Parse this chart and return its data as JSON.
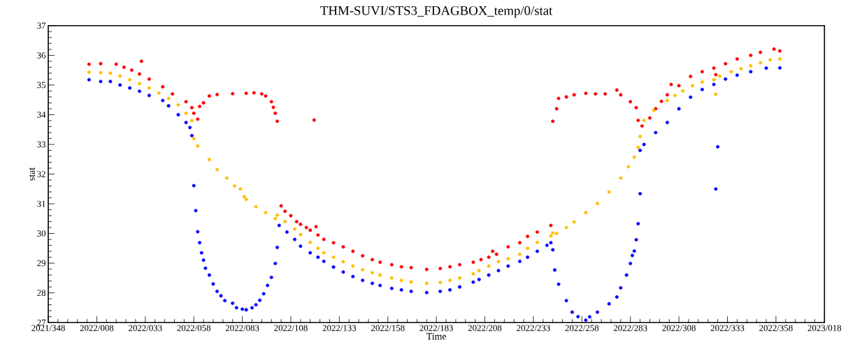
{
  "chart_data": {
    "type": "scatter",
    "title": "THM-SUVI/STS3_FDAGBOX_temp/0/stat",
    "xlabel": "Time",
    "ylabel": "stat",
    "xlim": [
      "2021-12-14",
      "2023-01-18"
    ],
    "ylim": [
      27,
      37
    ],
    "xticks": [
      {
        "value": "2021-12-14",
        "label": "2021/348"
      },
      {
        "value": "2022-01-08",
        "label": "2022/008"
      },
      {
        "value": "2022-02-02",
        "label": "2022/033"
      },
      {
        "value": "2022-02-27",
        "label": "2022/058"
      },
      {
        "value": "2022-03-24",
        "label": "2022/083"
      },
      {
        "value": "2022-04-18",
        "label": "2022/108"
      },
      {
        "value": "2022-05-13",
        "label": "2022/133"
      },
      {
        "value": "2022-06-07",
        "label": "2022/158"
      },
      {
        "value": "2022-07-02",
        "label": "2022/183"
      },
      {
        "value": "2022-07-27",
        "label": "2022/208"
      },
      {
        "value": "2022-08-21",
        "label": "2022/233"
      },
      {
        "value": "2022-09-15",
        "label": "2022/258"
      },
      {
        "value": "2022-10-10",
        "label": "2022/283"
      },
      {
        "value": "2022-11-04",
        "label": "2022/308"
      },
      {
        "value": "2022-11-29",
        "label": "2022/333"
      },
      {
        "value": "2022-12-24",
        "label": "2022/358"
      },
      {
        "value": "2023-01-18",
        "label": "2023/018"
      }
    ],
    "yticks": [
      27,
      28,
      29,
      30,
      31,
      32,
      33,
      34,
      35,
      36,
      37
    ],
    "marker": "circle",
    "series": [
      {
        "color": "#ff0000",
        "x": [
          "2022-01-04",
          "2022-01-10",
          "2022-01-18",
          "2022-01-22",
          "2022-01-26",
          "2022-01-30",
          "2022-01-31",
          "2022-02-04",
          "2022-02-11",
          "2022-02-16",
          "2022-02-23",
          "2022-02-26",
          "2022-02-27",
          "2022-03-01",
          "2022-03-02",
          "2022-03-04",
          "2022-03-07",
          "2022-03-11",
          "2022-03-19",
          "2022-03-26",
          "2022-03-30",
          "2022-04-03",
          "2022-04-05",
          "2022-04-08",
          "2022-04-09",
          "2022-04-10",
          "2022-04-11",
          "2022-04-13",
          "2022-04-15",
          "2022-04-18",
          "2022-04-21",
          "2022-04-23",
          "2022-04-26",
          "2022-04-28",
          "2022-04-30",
          "2022-05-01",
          "2022-05-02",
          "2022-05-05",
          "2022-05-10",
          "2022-05-15",
          "2022-05-20",
          "2022-05-25",
          "2022-05-30",
          "2022-06-03",
          "2022-06-09",
          "2022-06-14",
          "2022-06-19",
          "2022-06-27",
          "2022-07-04",
          "2022-07-09",
          "2022-07-14",
          "2022-07-21",
          "2022-07-25",
          "2022-07-29",
          "2022-07-31",
          "2022-08-02",
          "2022-08-08",
          "2022-08-14",
          "2022-08-18",
          "2022-08-23",
          "2022-08-30",
          "2022-08-31",
          "2022-09-02",
          "2022-09-03",
          "2022-09-07",
          "2022-09-11",
          "2022-09-17",
          "2022-09-22",
          "2022-09-27",
          "2022-10-03",
          "2022-10-05",
          "2022-10-10",
          "2022-10-13",
          "2022-10-14",
          "2022-10-16",
          "2022-10-20",
          "2022-10-23",
          "2022-10-26",
          "2022-10-29",
          "2022-10-31",
          "2022-11-04",
          "2022-11-10",
          "2022-11-16",
          "2022-11-22",
          "2022-11-23",
          "2022-11-28",
          "2022-12-04",
          "2022-12-11",
          "2022-12-16",
          "2022-12-23",
          "2022-12-26"
        ],
        "values": [
          35.7,
          35.72,
          35.7,
          35.6,
          35.5,
          35.37,
          35.8,
          35.2,
          34.94,
          34.7,
          34.44,
          34.24,
          34.05,
          33.85,
          34.28,
          34.4,
          34.63,
          34.68,
          34.71,
          34.72,
          34.74,
          34.7,
          34.63,
          34.44,
          34.25,
          34.05,
          33.78,
          30.93,
          30.75,
          30.6,
          30.4,
          30.31,
          30.2,
          30.11,
          33.82,
          30.23,
          29.95,
          29.8,
          29.69,
          29.55,
          29.4,
          29.25,
          29.12,
          29.03,
          28.95,
          28.88,
          28.85,
          28.79,
          28.82,
          28.88,
          28.95,
          29.03,
          29.12,
          29.2,
          29.4,
          29.3,
          29.55,
          29.69,
          29.9,
          30.05,
          30.27,
          33.78,
          34.2,
          34.55,
          34.6,
          34.67,
          34.72,
          34.7,
          34.7,
          34.83,
          34.67,
          34.44,
          34.24,
          33.81,
          33.62,
          33.89,
          34.2,
          34.45,
          34.67,
          35.02,
          34.98,
          35.29,
          35.45,
          35.57,
          35.35,
          35.72,
          35.88,
          36.0,
          36.1,
          36.21,
          36.15
        ]
      },
      {
        "color": "#ffc000",
        "x": [
          "2022-01-04",
          "2022-01-10",
          "2022-01-15",
          "2022-01-20",
          "2022-01-25",
          "2022-01-30",
          "2022-02-04",
          "2022-02-09",
          "2022-02-14",
          "2022-02-19",
          "2022-02-23",
          "2022-02-26",
          "2022-02-27",
          "2022-03-01",
          "2022-03-07",
          "2022-03-11",
          "2022-03-16",
          "2022-03-20",
          "2022-03-23",
          "2022-03-25",
          "2022-03-26",
          "2022-03-31",
          "2022-04-05",
          "2022-04-10",
          "2022-04-11",
          "2022-04-15",
          "2022-04-20",
          "2022-04-23",
          "2022-04-28",
          "2022-05-02",
          "2022-05-05",
          "2022-05-10",
          "2022-05-15",
          "2022-05-20",
          "2022-05-25",
          "2022-05-30",
          "2022-06-03",
          "2022-06-09",
          "2022-06-14",
          "2022-06-19",
          "2022-06-27",
          "2022-07-04",
          "2022-07-09",
          "2022-07-14",
          "2022-07-21",
          "2022-07-24",
          "2022-07-29",
          "2022-08-03",
          "2022-08-08",
          "2022-08-14",
          "2022-08-18",
          "2022-08-23",
          "2022-08-30",
          "2022-08-31",
          "2022-09-02",
          "2022-09-07",
          "2022-09-11",
          "2022-09-17",
          "2022-09-23",
          "2022-09-29",
          "2022-10-05",
          "2022-10-09",
          "2022-10-12",
          "2022-10-14",
          "2022-10-15",
          "2022-10-17",
          "2022-10-22",
          "2022-10-29",
          "2022-11-02",
          "2022-11-06",
          "2022-11-11",
          "2022-11-16",
          "2022-11-22",
          "2022-11-23",
          "2022-11-25",
          "2022-12-01",
          "2022-12-06",
          "2022-12-11",
          "2022-12-16",
          "2022-12-21",
          "2022-12-26"
        ],
        "values": [
          35.43,
          35.42,
          35.4,
          35.3,
          35.18,
          35.05,
          34.9,
          34.73,
          34.55,
          34.33,
          34.05,
          33.8,
          33.2,
          32.95,
          32.49,
          32.15,
          31.87,
          31.6,
          31.5,
          31.24,
          31.15,
          30.9,
          30.7,
          30.5,
          30.62,
          30.4,
          30.15,
          29.96,
          29.7,
          29.5,
          29.35,
          29.2,
          29.05,
          28.9,
          28.78,
          28.68,
          28.6,
          28.5,
          28.42,
          28.37,
          28.32,
          28.35,
          28.42,
          28.5,
          28.64,
          28.75,
          28.9,
          29.05,
          29.15,
          29.3,
          29.5,
          29.7,
          29.92,
          30.02,
          30.0,
          30.2,
          30.39,
          30.7,
          31.01,
          31.4,
          31.87,
          32.25,
          32.57,
          32.9,
          33.27,
          33.81,
          34.15,
          34.48,
          34.65,
          34.8,
          34.98,
          35.1,
          35.18,
          34.69,
          35.3,
          35.45,
          35.55,
          35.65,
          35.75,
          35.85,
          35.88
        ]
      },
      {
        "color": "#0000ff",
        "x": [
          "2022-01-04",
          "2022-01-10",
          "2022-01-15",
          "2022-01-20",
          "2022-01-25",
          "2022-01-30",
          "2022-02-04",
          "2022-02-11",
          "2022-02-14",
          "2022-02-19",
          "2022-02-23",
          "2022-02-25",
          "2022-02-26",
          "2022-02-27",
          "2022-02-28",
          "2022-03-01",
          "2022-03-02",
          "2022-03-03",
          "2022-03-04",
          "2022-03-05",
          "2022-03-07",
          "2022-03-09",
          "2022-03-11",
          "2022-03-13",
          "2022-03-15",
          "2022-03-19",
          "2022-03-21",
          "2022-03-24",
          "2022-03-26",
          "2022-03-29",
          "2022-03-31",
          "2022-04-02",
          "2022-04-04",
          "2022-04-06",
          "2022-04-08",
          "2022-04-10",
          "2022-04-11",
          "2022-04-12",
          "2022-04-16",
          "2022-04-20",
          "2022-04-23",
          "2022-04-28",
          "2022-05-02",
          "2022-05-05",
          "2022-05-10",
          "2022-05-15",
          "2022-05-20",
          "2022-05-25",
          "2022-05-30",
          "2022-06-03",
          "2022-06-09",
          "2022-06-14",
          "2022-06-19",
          "2022-06-27",
          "2022-07-04",
          "2022-07-09",
          "2022-07-14",
          "2022-07-21",
          "2022-07-24",
          "2022-07-29",
          "2022-08-03",
          "2022-08-08",
          "2022-08-14",
          "2022-08-18",
          "2022-08-23",
          "2022-08-28",
          "2022-08-30",
          "2022-08-31",
          "2022-09-01",
          "2022-09-03",
          "2022-09-07",
          "2022-09-10",
          "2022-09-13",
          "2022-09-17",
          "2022-09-19",
          "2022-09-23",
          "2022-09-29",
          "2022-10-03",
          "2022-10-05",
          "2022-10-08",
          "2022-10-10",
          "2022-10-11",
          "2022-10-12",
          "2022-10-13",
          "2022-10-14",
          "2022-10-15",
          "2022-10-15",
          "2022-10-17",
          "2022-10-23",
          "2022-10-29",
          "2022-11-04",
          "2022-11-10",
          "2022-11-16",
          "2022-11-22",
          "2022-11-23",
          "2022-11-24",
          "2022-11-28",
          "2022-12-04",
          "2022-12-11",
          "2022-12-19",
          "2022-12-26"
        ],
        "values": [
          35.18,
          35.12,
          35.12,
          35.0,
          34.9,
          34.79,
          34.65,
          34.48,
          34.3,
          34.0,
          33.74,
          33.57,
          33.3,
          31.61,
          30.77,
          30.06,
          29.69,
          29.35,
          29.1,
          28.83,
          28.6,
          28.3,
          28.05,
          27.9,
          27.74,
          27.65,
          27.5,
          27.45,
          27.43,
          27.5,
          27.6,
          27.75,
          27.97,
          28.25,
          28.52,
          28.99,
          29.53,
          30.27,
          30.05,
          29.8,
          29.57,
          29.35,
          29.2,
          29.06,
          28.87,
          28.7,
          28.55,
          28.42,
          28.32,
          28.25,
          28.15,
          28.1,
          28.05,
          28.01,
          28.05,
          28.1,
          28.2,
          28.36,
          28.45,
          28.6,
          28.75,
          28.9,
          29.06,
          29.2,
          29.4,
          29.6,
          29.69,
          29.45,
          28.77,
          28.29,
          27.74,
          27.35,
          27.2,
          27.08,
          27.19,
          27.35,
          27.63,
          27.86,
          28.17,
          28.6,
          28.99,
          29.26,
          29.41,
          29.79,
          30.33,
          31.34,
          32.8,
          33.0,
          33.4,
          33.74,
          34.2,
          34.59,
          34.85,
          35.02,
          31.5,
          32.92,
          35.2,
          35.33,
          35.45,
          35.57,
          35.58
        ]
      }
    ]
  }
}
